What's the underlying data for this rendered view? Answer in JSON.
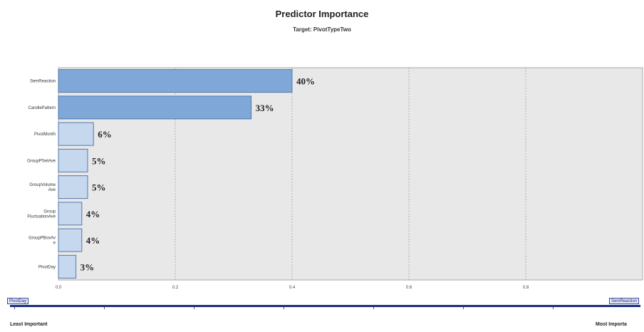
{
  "chart_data": {
    "type": "bar",
    "orientation": "horizontal",
    "title": "Predictor Importance",
    "subtitle": "Target: PivotTypeTwo",
    "categories": [
      "SemReaction",
      "CandlePattern",
      "PivotMonth",
      "GroupPSetAve",
      "GroupVolumeAve",
      "GroupFluctuationAve",
      "GroupPBoxAve",
      "PivotDay"
    ],
    "category_display": [
      "SemReaction",
      "CandlePattern",
      "PivotMonth",
      "GroupPSetAve",
      "GroupVolume\nAve",
      "Group\nFluctuationAve",
      "GroupPBoxAv\ne",
      "PivotDay"
    ],
    "values": [
      0.4,
      0.33,
      0.06,
      0.05,
      0.05,
      0.04,
      0.04,
      0.03
    ],
    "value_labels": [
      "40%",
      "33%",
      "6%",
      "5%",
      "5%",
      "4%",
      "4%",
      "3%"
    ],
    "xlim": [
      0,
      1.0
    ],
    "xticks": [
      0.0,
      0.2,
      0.4,
      0.6,
      0.8
    ],
    "xtick_labels": [
      "0.0",
      "0.2",
      "0.4",
      "0.6",
      "0.8"
    ],
    "grid": true,
    "colors": {
      "plot_bg": "#e8e8e8",
      "top_bars": "#7fa8d8",
      "other_bars": "#c5d8ee",
      "bar_stroke": "#5577aa",
      "slider": "#1c2f7a"
    }
  },
  "slider": {
    "left_label": "PivotDay",
    "right_label": "SemReaction",
    "least_label": "Least Important",
    "most_label": "Most Importa"
  }
}
